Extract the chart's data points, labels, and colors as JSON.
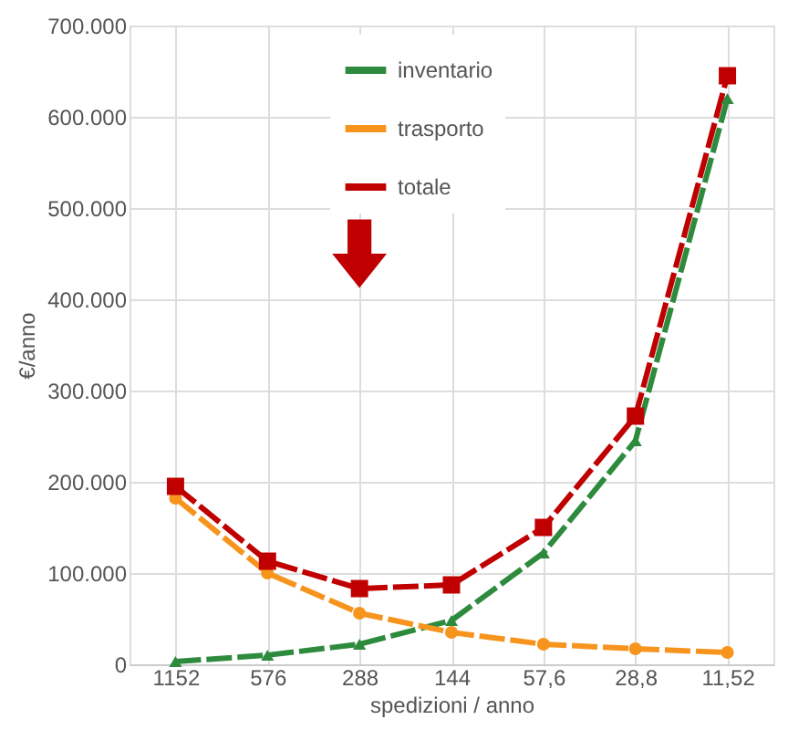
{
  "chart_data": {
    "type": "line",
    "categories": [
      "1152",
      "576",
      "288",
      "144",
      "57,6",
      "28,8",
      "11,52"
    ],
    "ylabel": "€/anno",
    "xlabel": "spedizioni / anno",
    "series": [
      {
        "name": "inventario",
        "color": "#2e8b3e",
        "marker": "triangle",
        "values": [
          3000,
          10000,
          22000,
          48000,
          122000,
          245000,
          620000
        ]
      },
      {
        "name": "trasporto",
        "color": "#f7941d",
        "marker": "circle",
        "values": [
          182000,
          100000,
          56000,
          35000,
          22000,
          17000,
          13000
        ]
      },
      {
        "name": "totale",
        "color": "#c00000",
        "marker": "square",
        "values": [
          195000,
          113000,
          83000,
          87000,
          150000,
          272000,
          645000
        ]
      }
    ],
    "ylim": [
      0,
      700000
    ],
    "yticks": [
      {
        "value": 0,
        "label": "0"
      },
      {
        "value": 100000,
        "label": "100.000"
      },
      {
        "value": 200000,
        "label": "200.000"
      },
      {
        "value": 300000,
        "label": "300.000"
      },
      {
        "value": 400000,
        "label": "400.000"
      },
      {
        "value": 500000,
        "label": "500.000"
      },
      {
        "value": 600000,
        "label": "600.000"
      },
      {
        "value": 700000,
        "label": "700.000"
      }
    ],
    "grid": true,
    "legend": "top",
    "line_style": "dashed"
  }
}
